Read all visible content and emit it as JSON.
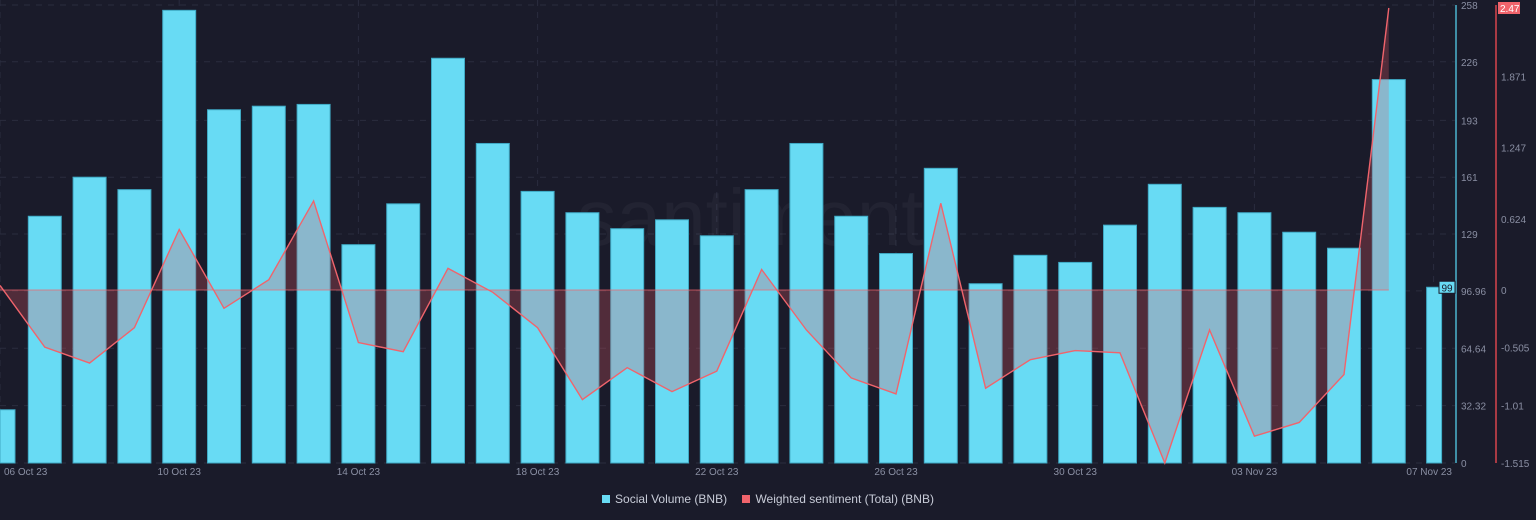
{
  "chart_data": {
    "type": "bar+line",
    "watermark": "santiment",
    "x": [
      "06 Oct 23",
      "07 Oct 23",
      "08 Oct 23",
      "09 Oct 23",
      "10 Oct 23",
      "11 Oct 23",
      "12 Oct 23",
      "13 Oct 23",
      "14 Oct 23",
      "15 Oct 23",
      "16 Oct 23",
      "17 Oct 23",
      "18 Oct 23",
      "19 Oct 23",
      "20 Oct 23",
      "21 Oct 23",
      "22 Oct 23",
      "23 Oct 23",
      "24 Oct 23",
      "25 Oct 23",
      "26 Oct 23",
      "27 Oct 23",
      "28 Oct 23",
      "29 Oct 23",
      "30 Oct 23",
      "31 Oct 23",
      "01 Nov 23",
      "02 Nov 23",
      "03 Nov 23",
      "04 Nov 23",
      "05 Nov 23",
      "06 Nov 23",
      "07 Nov 23"
    ],
    "x_tick_labels": [
      "06 Oct 23",
      "10 Oct 23",
      "14 Oct 23",
      "18 Oct 23",
      "22 Oct 23",
      "26 Oct 23",
      "30 Oct 23",
      "03 Nov 23",
      "07 Nov 23"
    ],
    "series": [
      {
        "name": "Social Volume (BNB)",
        "type": "bar",
        "axis": "left",
        "color": "#68dbf4",
        "values": [
          30,
          139,
          161,
          154,
          255,
          199,
          201,
          202,
          123,
          146,
          228,
          180,
          153,
          141,
          132,
          137,
          128,
          154,
          180,
          139,
          118,
          166,
          101,
          117,
          113,
          134,
          157,
          144,
          141,
          130,
          121,
          216,
          99
        ]
      },
      {
        "name": "Weighted sentiment (Total) (BNB)",
        "type": "line",
        "axis": "right",
        "color": "#f0646c",
        "values": [
          0.04,
          -0.5,
          -0.64,
          -0.33,
          0.53,
          -0.16,
          0.09,
          0.78,
          -0.46,
          -0.54,
          0.19,
          -0.02,
          -0.33,
          -0.96,
          -0.68,
          -0.89,
          -0.71,
          0.18,
          -0.35,
          -0.77,
          -0.91,
          0.76,
          -0.86,
          -0.61,
          -0.53,
          -0.55,
          -1.515,
          -0.35,
          -1.28,
          -1.16,
          -0.74,
          2.47,
          null
        ]
      }
    ],
    "left_axis": {
      "ylim": [
        0,
        258
      ],
      "ticks": [
        "258",
        "226",
        "193",
        "161",
        "129",
        "96.96",
        "64.64",
        "32.32",
        "0"
      ],
      "tick_values": [
        258,
        226,
        193,
        161,
        129,
        96.96,
        64.64,
        32.32,
        0
      ],
      "last_value_badge": "99",
      "color": "#3f8ea6"
    },
    "right_axis": {
      "ylim": [
        -1.515,
        2.47
      ],
      "ticks": [
        "1.871",
        "1.247",
        "0.624",
        "0",
        "-0.505",
        "-1.01",
        "-1.515"
      ],
      "tick_values": [
        1.871,
        1.247,
        0.624,
        0,
        -0.505,
        -1.01,
        -1.515
      ],
      "last_value_badge": "2.47",
      "color": "#a83a44"
    },
    "grid": true,
    "legend_position": "bottom"
  }
}
